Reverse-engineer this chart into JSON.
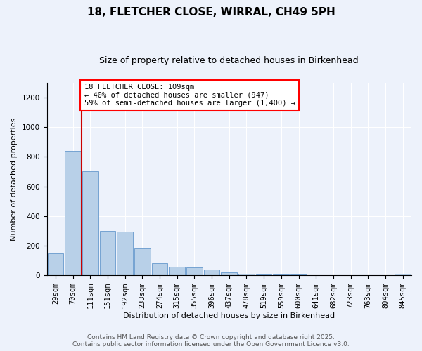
{
  "title": "18, FLETCHER CLOSE, WIRRAL, CH49 5PH",
  "subtitle": "Size of property relative to detached houses in Birkenhead",
  "xlabel": "Distribution of detached houses by size in Birkenhead",
  "ylabel": "Number of detached properties",
  "annotation_line1": "18 FLETCHER CLOSE: 109sqm",
  "annotation_line2": "← 40% of detached houses are smaller (947)",
  "annotation_line3": "59% of semi-detached houses are larger (1,400) →",
  "bin_labels": [
    "29sqm",
    "70sqm",
    "111sqm",
    "151sqm",
    "192sqm",
    "233sqm",
    "274sqm",
    "315sqm",
    "355sqm",
    "396sqm",
    "437sqm",
    "478sqm",
    "519sqm",
    "559sqm",
    "600sqm",
    "641sqm",
    "682sqm",
    "723sqm",
    "763sqm",
    "804sqm",
    "845sqm"
  ],
  "bin_values": [
    150,
    840,
    700,
    300,
    295,
    185,
    80,
    60,
    55,
    40,
    20,
    12,
    8,
    5,
    4,
    3,
    2,
    2,
    1,
    1,
    10
  ],
  "bar_color": "#b8d0e8",
  "bar_edge_color": "#6699cc",
  "vline_color": "#cc0000",
  "vline_x": 1.5,
  "background_color": "#edf2fb",
  "grid_color": "#ffffff",
  "ylim": [
    0,
    1300
  ],
  "yticks": [
    0,
    200,
    400,
    600,
    800,
    1000,
    1200
  ],
  "footer_line1": "Contains HM Land Registry data © Crown copyright and database right 2025.",
  "footer_line2": "Contains public sector information licensed under the Open Government Licence v3.0.",
  "title_fontsize": 11,
  "subtitle_fontsize": 9,
  "axis_label_fontsize": 8,
  "tick_fontsize": 7.5,
  "annotation_fontsize": 7.5,
  "footer_fontsize": 6.5
}
